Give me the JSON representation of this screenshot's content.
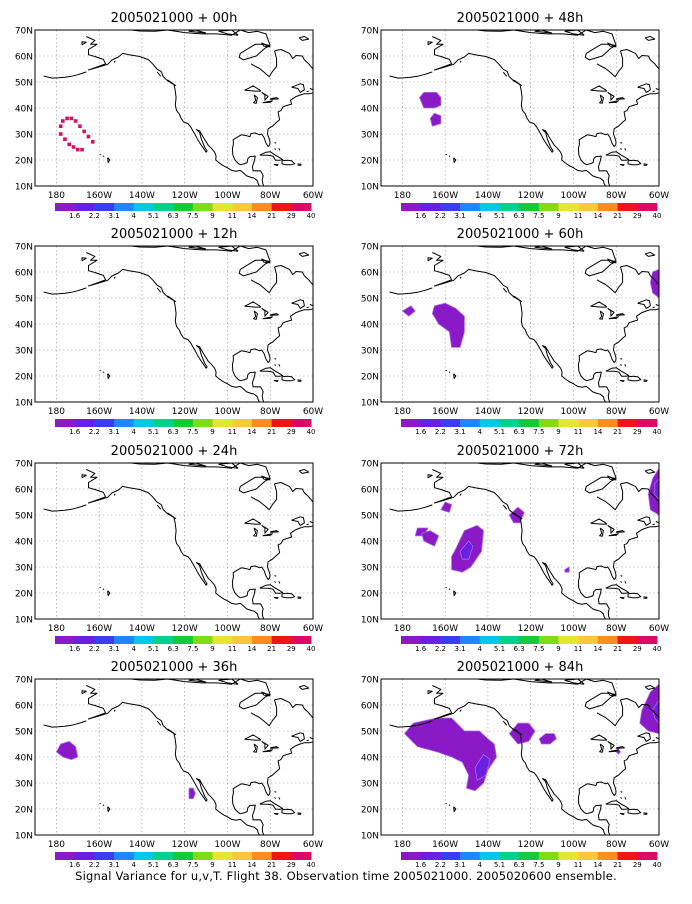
{
  "chart_data": {
    "type": "map-contour",
    "lon_range": [
      -190,
      -60
    ],
    "lat_range": [
      10,
      70
    ],
    "lon_ticks": [
      "180",
      "160W",
      "140W",
      "120W",
      "100W",
      "80W",
      "60W"
    ],
    "lat_ticks": [
      "10N",
      "20N",
      "30N",
      "40N",
      "50N",
      "60N",
      "70N"
    ],
    "grid": "dotted",
    "colorbar": {
      "labels": [
        "1.6",
        "2.2",
        "3.1",
        "4",
        "5.1",
        "6.3",
        "7.5",
        "9",
        "11",
        "14",
        "21",
        "29",
        "40"
      ],
      "colors": [
        "#8a19c8",
        "#6b1fe0",
        "#3b3df5",
        "#1f86ff",
        "#00c8e6",
        "#00d28c",
        "#16c83c",
        "#80dc14",
        "#e6e632",
        "#ffc83c",
        "#ff8c1e",
        "#f01414",
        "#dc0a64"
      ]
    },
    "panels": [
      {
        "title": "2005021000 + 00h",
        "markers": [
          [
            -178,
            30
          ],
          [
            -178,
            33
          ],
          [
            -177,
            35
          ],
          [
            -175,
            36
          ],
          [
            -173,
            36
          ],
          [
            -171,
            35
          ],
          [
            -169,
            33
          ],
          [
            -167,
            31
          ],
          [
            -165,
            29
          ],
          [
            -163,
            27
          ],
          [
            -176,
            28
          ],
          [
            -174,
            26
          ],
          [
            -172,
            25
          ],
          [
            -170,
            24
          ],
          [
            -168,
            24
          ]
        ],
        "marker_color": "#dc0a64",
        "regions": []
      },
      {
        "title": "2005021000 + 12h",
        "markers": [],
        "regions": []
      },
      {
        "title": "2005021000 + 24h",
        "markers": [],
        "regions": []
      },
      {
        "title": "2005021000 + 36h",
        "markers": [],
        "regions": [
          {
            "level": 0,
            "points": [
              [
                -180,
                42
              ],
              [
                -178,
                45
              ],
              [
                -174,
                46
              ],
              [
                -171,
                44
              ],
              [
                -170,
                40
              ],
              [
                -173,
                39
              ],
              [
                -177,
                40
              ]
            ]
          },
          {
            "level": 0,
            "points": [
              [
                -118,
                28
              ],
              [
                -116,
                28
              ],
              [
                -115,
                26
              ],
              [
                -116,
                24
              ],
              [
                -118,
                24
              ]
            ]
          }
        ]
      },
      {
        "title": "2005021000 + 48h",
        "markers": [],
        "regions": [
          {
            "level": 0,
            "points": [
              [
                -172,
                44
              ],
              [
                -170,
                46
              ],
              [
                -164,
                46
              ],
              [
                -162,
                44
              ],
              [
                -162,
                41
              ],
              [
                -165,
                40
              ],
              [
                -170,
                40
              ]
            ]
          },
          {
            "level": 0,
            "points": [
              [
                -167,
                36
              ],
              [
                -165,
                38
              ],
              [
                -162,
                37
              ],
              [
                -162,
                34
              ],
              [
                -166,
                33
              ]
            ]
          }
        ]
      },
      {
        "title": "2005021000 + 60h",
        "markers": [],
        "regions": [
          {
            "level": 0,
            "points": [
              [
                -166,
                44
              ],
              [
                -165,
                47
              ],
              [
                -160,
                48
              ],
              [
                -155,
                46
              ],
              [
                -151,
                43
              ],
              [
                -151,
                37
              ],
              [
                -153,
                31
              ],
              [
                -157,
                31
              ],
              [
                -158,
                37
              ],
              [
                -163,
                40
              ]
            ]
          },
          {
            "level": 0,
            "points": [
              [
                -180,
                45
              ],
              [
                -176,
                47
              ],
              [
                -174,
                45
              ],
              [
                -177,
                43
              ]
            ]
          },
          {
            "level": 0,
            "points": [
              [
                -63,
                60
              ],
              [
                -60,
                61
              ],
              [
                -60,
                50
              ],
              [
                -63,
                52
              ],
              [
                -64,
                56
              ]
            ]
          }
        ]
      },
      {
        "title": "2005021000 + 72h",
        "markers": [],
        "regions": [
          {
            "level": 0,
            "points": [
              [
                -155,
                37
              ],
              [
                -151,
                44
              ],
              [
                -145,
                46
              ],
              [
                -142,
                44
              ],
              [
                -143,
                36
              ],
              [
                -148,
                30
              ],
              [
                -152,
                28
              ],
              [
                -157,
                29
              ],
              [
                -157,
                34
              ]
            ]
          },
          {
            "level": 1,
            "points": [
              [
                -153,
                36
              ],
              [
                -149,
                40
              ],
              [
                -147,
                38
              ],
              [
                -149,
                33
              ],
              [
                -152,
                33
              ]
            ]
          },
          {
            "level": 0,
            "points": [
              [
                -174,
                42
              ],
              [
                -173,
                45
              ],
              [
                -168,
                45
              ],
              [
                -170,
                42
              ]
            ]
          },
          {
            "level": 0,
            "points": [
              [
                -162,
                52
              ],
              [
                -160,
                55
              ],
              [
                -157,
                54
              ],
              [
                -158,
                51
              ]
            ]
          },
          {
            "level": 0,
            "points": [
              [
                -170,
                40
              ],
              [
                -171,
                43
              ],
              [
                -167,
                44
              ],
              [
                -163,
                42
              ],
              [
                -165,
                38
              ]
            ]
          },
          {
            "level": 0,
            "points": [
              [
                -130,
                50
              ],
              [
                -126,
                53
              ],
              [
                -123,
                51
              ],
              [
                -125,
                47
              ],
              [
                -128,
                47
              ]
            ]
          },
          {
            "level": 0,
            "points": [
              [
                -63,
                64
              ],
              [
                -60,
                68
              ],
              [
                -60,
                50
              ],
              [
                -64,
                52
              ],
              [
                -65,
                58
              ]
            ]
          },
          {
            "level": 1,
            "points": [
              [
                -62,
                62
              ],
              [
                -60,
                64
              ],
              [
                -60,
                56
              ],
              [
                -62,
                58
              ]
            ]
          },
          {
            "level": 0,
            "points": [
              [
                -104,
                29
              ],
              [
                -102,
                30
              ],
              [
                -102,
                28
              ],
              [
                -104,
                28
              ]
            ]
          }
        ]
      },
      {
        "title": "2005021000 + 84h",
        "markers": [],
        "regions": [
          {
            "level": 0,
            "points": [
              [
                -179,
                49
              ],
              [
                -175,
                53
              ],
              [
                -164,
                55
              ],
              [
                -157,
                55
              ],
              [
                -151,
                50
              ],
              [
                -144,
                50
              ],
              [
                -140,
                47
              ],
              [
                -137,
                45
              ],
              [
                -136,
                40
              ],
              [
                -140,
                35
              ],
              [
                -142,
                30
              ],
              [
                -146,
                27
              ],
              [
                -150,
                28
              ],
              [
                -149,
                33
              ],
              [
                -152,
                38
              ],
              [
                -157,
                40
              ],
              [
                -164,
                42
              ],
              [
                -173,
                44
              ]
            ]
          },
          {
            "level": 1,
            "points": [
              [
                -146,
                36
              ],
              [
                -142,
                41
              ],
              [
                -139,
                39
              ],
              [
                -141,
                33
              ],
              [
                -145,
                31
              ]
            ]
          },
          {
            "level": 0,
            "points": [
              [
                -130,
                49
              ],
              [
                -126,
                53
              ],
              [
                -121,
                53
              ],
              [
                -118,
                50
              ],
              [
                -121,
                46
              ],
              [
                -126,
                45
              ]
            ]
          },
          {
            "level": 0,
            "points": [
              [
                -116,
                47
              ],
              [
                -113,
                49
              ],
              [
                -109,
                49
              ],
              [
                -108,
                47
              ],
              [
                -111,
                45
              ],
              [
                -115,
                45
              ]
            ]
          },
          {
            "level": 0,
            "points": [
              [
                -68,
                58
              ],
              [
                -64,
                65
              ],
              [
                -60,
                68
              ],
              [
                -60,
                49
              ],
              [
                -65,
                50
              ],
              [
                -69,
                53
              ]
            ]
          },
          {
            "level": 1,
            "points": [
              [
                -63,
                58
              ],
              [
                -60,
                62
              ],
              [
                -60,
                53
              ],
              [
                -62,
                55
              ]
            ]
          },
          {
            "level": 0,
            "points": [
              [
                -80,
                42
              ],
              [
                -79,
                43
              ],
              [
                -78,
                42
              ],
              [
                -79,
                41
              ]
            ]
          }
        ]
      }
    ]
  },
  "caption": "Signal Variance for u,v,T. Flight 38. Observation time 2005021000. 2005020600 ensemble."
}
